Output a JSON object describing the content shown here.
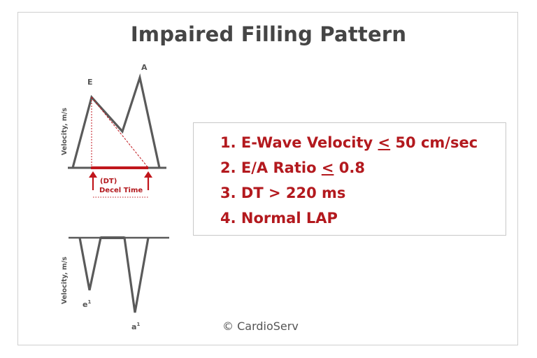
{
  "title": "Impaired Filling Pattern",
  "top_diagram": {
    "y_axis_label": "Velocity, m/s",
    "peak_e_label": "E",
    "peak_a_label": "A",
    "dt_label_line1": "(DT)",
    "dt_label_line2": "Decel Time"
  },
  "bottom_diagram": {
    "y_axis_label": "Velocity, m/s",
    "peak_e_label": "e",
    "peak_a_label": "a",
    "prime_mark": "1"
  },
  "criteria": {
    "item1": {
      "number": "1.",
      "prefix": "E-Wave Velocity ",
      "symbol": "<",
      "suffix": " 50 cm/sec"
    },
    "item2": {
      "number": "2.",
      "prefix": "E/A Ratio ",
      "symbol": "<",
      "suffix": " 0.8"
    },
    "item3": {
      "number": "3.",
      "text": "DT > 220 ms"
    },
    "item4": {
      "number": "4.",
      "text": "Normal LAP"
    }
  },
  "copyright": "© CardioServ",
  "colors": {
    "accent": "#b3191e",
    "wave": "#5a5a5a",
    "text": "#454545"
  }
}
